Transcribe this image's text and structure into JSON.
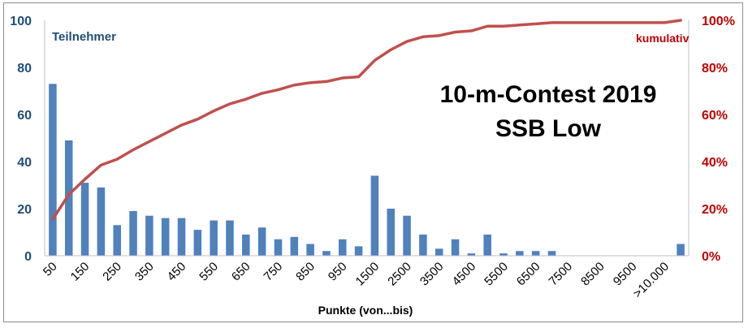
{
  "chart_data": {
    "type": "bar",
    "title": "10-m-Contest 2019",
    "subtitle": "SSB Low",
    "xlabel": "Punkte (von...bis)",
    "ylabel": "",
    "y2label": "",
    "left_series_label": "Teilnehmer",
    "right_series_label": "kumulativ",
    "ylim": [
      0,
      100
    ],
    "y2lim": [
      0,
      100
    ],
    "yticks": [
      "0",
      "20",
      "40",
      "60",
      "80",
      "100"
    ],
    "y2ticks": [
      "0%",
      "20%",
      "40%",
      "60%",
      "80%",
      "100%"
    ],
    "x_tick_labels": [
      "50",
      "150",
      "250",
      "350",
      "450",
      "550",
      "650",
      "750",
      "850",
      "950",
      "1500",
      "2500",
      "3500",
      "4500",
      "5500",
      "6500",
      "7500",
      "8500",
      "9500",
      ">10.000"
    ],
    "num_categories": 40,
    "bar_color": "#4f81bd",
    "line_color": "#c0504d",
    "series": [
      {
        "name": "Teilnehmer",
        "type": "bar",
        "values": [
          73,
          49,
          31,
          29,
          13,
          19,
          17,
          16,
          16,
          11,
          15,
          15,
          9,
          12,
          7,
          8,
          5,
          2,
          7,
          4,
          34,
          20,
          17,
          9,
          3,
          7,
          1,
          9,
          1,
          2,
          2,
          2,
          0,
          0,
          0,
          0,
          0,
          0,
          0,
          5
        ]
      },
      {
        "name": "kumulativ",
        "type": "line",
        "axis": "right",
        "values": [
          15.5,
          26,
          32.5,
          38.5,
          41,
          45,
          48.5,
          52,
          55.5,
          58,
          61.5,
          64.5,
          66.5,
          69,
          70.5,
          72.5,
          73.5,
          74,
          75.5,
          76,
          83,
          87.5,
          91,
          93,
          93.5,
          95,
          95.5,
          97.5,
          97.5,
          98,
          98.5,
          99,
          99,
          99,
          99,
          99,
          99,
          99,
          99,
          100
        ]
      }
    ],
    "grid": false,
    "legend": "inline-top"
  }
}
